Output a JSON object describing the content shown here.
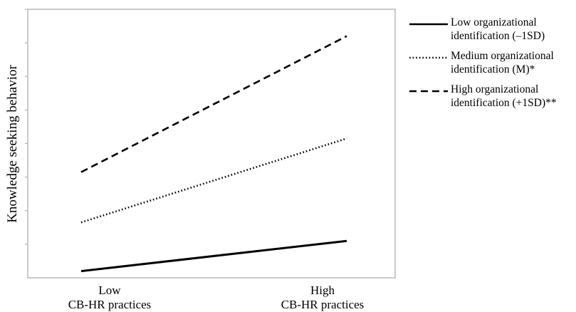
{
  "chart_data": {
    "type": "line",
    "title": "",
    "ylabel": "Knowledge seeking behavior",
    "xlabel": "",
    "categories": [
      "Low\nCB-HR practices",
      "High\nCB-HR practices"
    ],
    "ylim": [
      0,
      8
    ],
    "y_ticks": [
      1,
      2,
      3,
      4,
      5,
      6,
      7,
      8
    ],
    "y_tick_labels_shown": false,
    "grid": false,
    "legend_position": "right",
    "series": [
      {
        "name": "Low organizational identification (–1SD)",
        "values": [
          0.2,
          1.1
        ],
        "style": "solid",
        "color": "#000000"
      },
      {
        "name": "Medium organizational identification (M)*",
        "values": [
          1.65,
          4.15
        ],
        "style": "dotted",
        "color": "#000000"
      },
      {
        "name": "High organizational identification (+1SD)**",
        "values": [
          3.15,
          7.2
        ],
        "style": "dashed",
        "color": "#000000"
      }
    ]
  }
}
